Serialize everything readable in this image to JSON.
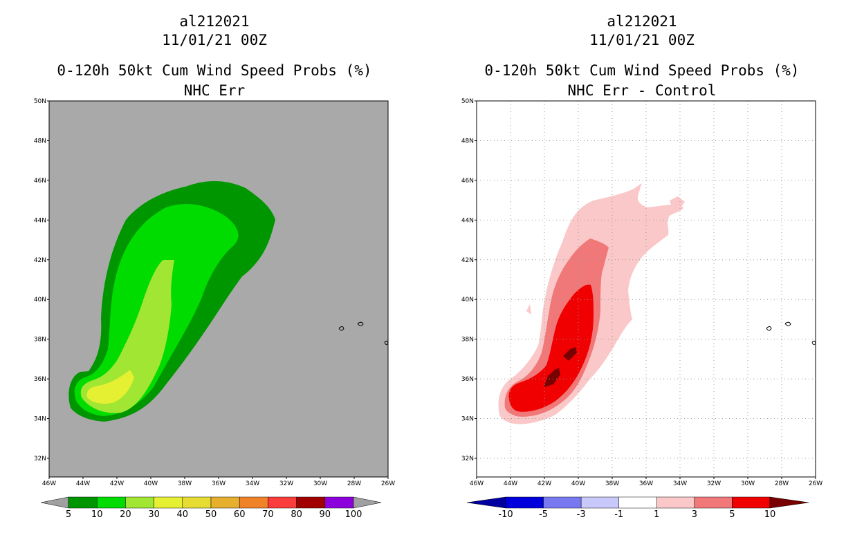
{
  "panels": [
    {
      "storm_id": "al212021",
      "datetime": "11/01/21 00Z",
      "product": "0-120h 50kt Cum Wind Speed Probs (%)",
      "subtitle": "NHC Err",
      "lat_labels": [
        "32N",
        "34N",
        "36N",
        "38N",
        "40N",
        "42N",
        "44N",
        "46N",
        "48N",
        "50N"
      ],
      "lon_labels": [
        "46W",
        "44W",
        "42W",
        "40W",
        "38W",
        "36W",
        "34W",
        "32W",
        "30W",
        "28W",
        "26W"
      ],
      "colorbar": {
        "labels": [
          "5",
          "10",
          "20",
          "30",
          "40",
          "50",
          "60",
          "70",
          "80",
          "90",
          "100"
        ],
        "colors": [
          "#009600",
          "#00dc00",
          "#a0e632",
          "#e6f032",
          "#e6dc32",
          "#e6af2d",
          "#f08228",
          "#fa3c3c",
          "#a00000",
          "#8c00dc"
        ],
        "under_color": "#a0a0a0",
        "over_color": "#a0a0a0"
      },
      "background_color": "#a9a9a9"
    },
    {
      "storm_id": "al212021",
      "datetime": "11/01/21 00Z",
      "product": "0-120h 50kt Cum Wind Speed Probs (%)",
      "subtitle": "NHC Err - Control",
      "lat_labels": [
        "32N",
        "34N",
        "36N",
        "38N",
        "40N",
        "42N",
        "44N",
        "46N",
        "48N",
        "50N"
      ],
      "lon_labels": [
        "46W",
        "44W",
        "42W",
        "40W",
        "38W",
        "36W",
        "34W",
        "32W",
        "30W",
        "28W",
        "26W"
      ],
      "colorbar": {
        "labels": [
          "-10",
          "-5",
          "-3",
          "-1",
          "1",
          "3",
          "5",
          "10"
        ],
        "colors": [
          "#0000dc",
          "#7878f0",
          "#c8c8fa",
          "#ffffff",
          "#fac8c8",
          "#f07878",
          "#f00000"
        ],
        "under_color": "#0000a0",
        "over_color": "#780000"
      },
      "background_color": "#ffffff"
    }
  ]
}
